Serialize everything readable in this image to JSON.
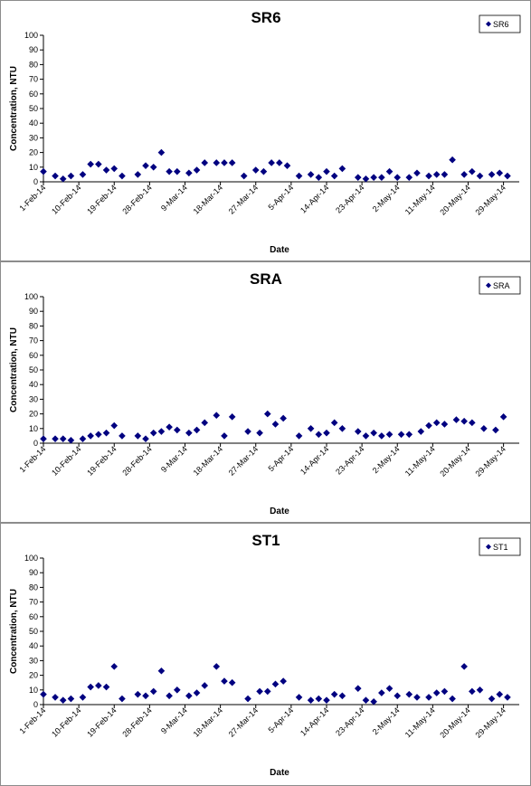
{
  "marker_color": "#000080",
  "x_ticks": [
    "1-Feb-14",
    "10-Feb-14",
    "19-Feb-14",
    "28-Feb-14",
    "9-Mar-14",
    "18-Mar-14",
    "27-Mar-14",
    "5-Apr-14",
    "14-Apr-14",
    "23-Apr-14",
    "2-May-14",
    "11-May-14",
    "20-May-14",
    "29-May-14"
  ],
  "chart_data": [
    {
      "type": "scatter",
      "title": "SR6",
      "xlabel": "Date",
      "ylabel": "Concentration, NTU",
      "xlim": [
        "2014-02-01",
        "2014-06-02"
      ],
      "ylim": [
        0,
        100
      ],
      "y_ticks": [
        0,
        10,
        20,
        30,
        40,
        50,
        60,
        70,
        80,
        90,
        100
      ],
      "grid": false,
      "legend": "top-right",
      "series": [
        {
          "name": "SR6",
          "x": [
            "2014-02-01",
            "2014-02-04",
            "2014-02-06",
            "2014-02-08",
            "2014-02-11",
            "2014-02-13",
            "2014-02-15",
            "2014-02-17",
            "2014-02-19",
            "2014-02-21",
            "2014-02-25",
            "2014-02-27",
            "2014-03-01",
            "2014-03-03",
            "2014-03-05",
            "2014-03-07",
            "2014-03-10",
            "2014-03-12",
            "2014-03-14",
            "2014-03-17",
            "2014-03-19",
            "2014-03-21",
            "2014-03-24",
            "2014-03-27",
            "2014-03-29",
            "2014-03-31",
            "2014-04-02",
            "2014-04-04",
            "2014-04-07",
            "2014-04-10",
            "2014-04-12",
            "2014-04-14",
            "2014-04-16",
            "2014-04-18",
            "2014-04-22",
            "2014-04-24",
            "2014-04-26",
            "2014-04-28",
            "2014-04-30",
            "2014-05-02",
            "2014-05-05",
            "2014-05-07",
            "2014-05-10",
            "2014-05-12",
            "2014-05-14",
            "2014-05-16",
            "2014-05-19",
            "2014-05-21",
            "2014-05-23",
            "2014-05-26",
            "2014-05-28",
            "2014-05-30"
          ],
          "y": [
            7,
            4,
            2,
            4,
            5,
            12,
            12,
            8,
            9,
            4,
            5,
            11,
            10,
            20,
            7,
            7,
            6,
            8,
            13,
            13,
            13,
            13,
            4,
            8,
            7,
            13,
            13,
            11,
            4,
            5,
            3,
            7,
            4,
            9,
            3,
            2,
            3,
            3,
            7,
            3,
            3,
            6,
            4,
            5,
            5,
            15,
            5,
            7,
            4,
            5,
            6,
            4
          ]
        }
      ]
    },
    {
      "type": "scatter",
      "title": "SRA",
      "xlabel": "Date",
      "ylabel": "Concentration, NTU",
      "xlim": [
        "2014-02-01",
        "2014-06-02"
      ],
      "ylim": [
        0,
        100
      ],
      "y_ticks": [
        0,
        10,
        20,
        30,
        40,
        50,
        60,
        70,
        80,
        90,
        100
      ],
      "grid": false,
      "legend": "top-right",
      "series": [
        {
          "name": "SRA",
          "x": [
            "2014-02-01",
            "2014-02-04",
            "2014-02-06",
            "2014-02-08",
            "2014-02-11",
            "2014-02-13",
            "2014-02-15",
            "2014-02-17",
            "2014-02-19",
            "2014-02-21",
            "2014-02-25",
            "2014-02-27",
            "2014-03-01",
            "2014-03-03",
            "2014-03-05",
            "2014-03-07",
            "2014-03-10",
            "2014-03-12",
            "2014-03-14",
            "2014-03-17",
            "2014-03-19",
            "2014-03-21",
            "2014-03-25",
            "2014-03-28",
            "2014-03-30",
            "2014-04-01",
            "2014-04-03",
            "2014-04-07",
            "2014-04-10",
            "2014-04-12",
            "2014-04-14",
            "2014-04-16",
            "2014-04-18",
            "2014-04-22",
            "2014-04-24",
            "2014-04-26",
            "2014-04-28",
            "2014-04-30",
            "2014-05-03",
            "2014-05-05",
            "2014-05-08",
            "2014-05-10",
            "2014-05-12",
            "2014-05-14",
            "2014-05-17",
            "2014-05-19",
            "2014-05-21",
            "2014-05-24",
            "2014-05-27",
            "2014-05-29"
          ],
          "y": [
            3,
            3,
            3,
            2,
            3,
            5,
            6,
            7,
            12,
            5,
            5,
            3,
            7,
            8,
            11,
            9,
            7,
            9,
            14,
            19,
            5,
            18,
            8,
            7,
            20,
            13,
            17,
            5,
            10,
            6,
            7,
            14,
            10,
            8,
            5,
            7,
            5,
            6,
            6,
            6,
            8,
            12,
            14,
            13,
            16,
            15,
            14,
            10,
            9,
            18
          ]
        }
      ]
    },
    {
      "type": "scatter",
      "title": "ST1",
      "xlabel": "Date",
      "ylabel": "Concentration, NTU",
      "xlim": [
        "2014-02-01",
        "2014-06-02"
      ],
      "ylim": [
        0,
        100
      ],
      "y_ticks": [
        0,
        10,
        20,
        30,
        40,
        50,
        60,
        70,
        80,
        90,
        100
      ],
      "grid": false,
      "legend": "top-right",
      "series": [
        {
          "name": "ST1",
          "x": [
            "2014-02-01",
            "2014-02-04",
            "2014-02-06",
            "2014-02-08",
            "2014-02-11",
            "2014-02-13",
            "2014-02-15",
            "2014-02-17",
            "2014-02-19",
            "2014-02-21",
            "2014-02-25",
            "2014-02-27",
            "2014-03-01",
            "2014-03-03",
            "2014-03-05",
            "2014-03-07",
            "2014-03-10",
            "2014-03-12",
            "2014-03-14",
            "2014-03-17",
            "2014-03-19",
            "2014-03-21",
            "2014-03-25",
            "2014-03-28",
            "2014-03-30",
            "2014-04-01",
            "2014-04-03",
            "2014-04-07",
            "2014-04-10",
            "2014-04-12",
            "2014-04-14",
            "2014-04-16",
            "2014-04-18",
            "2014-04-22",
            "2014-04-24",
            "2014-04-26",
            "2014-04-28",
            "2014-04-30",
            "2014-05-02",
            "2014-05-05",
            "2014-05-07",
            "2014-05-10",
            "2014-05-12",
            "2014-05-14",
            "2014-05-16",
            "2014-05-19",
            "2014-05-21",
            "2014-05-23",
            "2014-05-26",
            "2014-05-28",
            "2014-05-30"
          ],
          "y": [
            7,
            5,
            3,
            4,
            5,
            12,
            13,
            12,
            26,
            4,
            7,
            6,
            9,
            23,
            6,
            10,
            6,
            8,
            13,
            26,
            16,
            15,
            4,
            9,
            9,
            14,
            16,
            5,
            3,
            4,
            3,
            7,
            6,
            11,
            3,
            2,
            8,
            11,
            6,
            7,
            5,
            5,
            8,
            9,
            4,
            26,
            9,
            10,
            4,
            7,
            5
          ]
        }
      ]
    }
  ]
}
